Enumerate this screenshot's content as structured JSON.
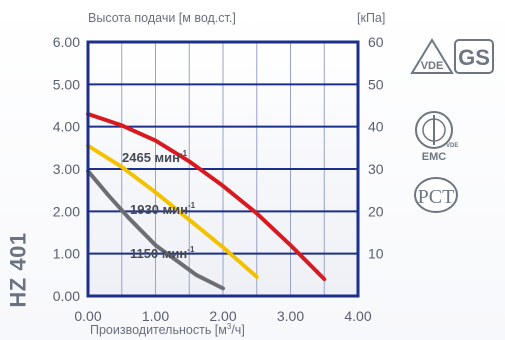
{
  "model": "HZ 401",
  "logos": {
    "vde": "VDE",
    "gs": "GS",
    "emc": "EMC",
    "emc_small": "VDE",
    "rst": "PCT"
  },
  "chart_data": {
    "type": "line",
    "title": "",
    "ylabel": "Высота подачи [м вод.ст.]",
    "ylabel_right": "[кПа]",
    "xlabel": "Производительность [м³/ч]",
    "xlim": [
      0,
      4
    ],
    "ylim": [
      0,
      6
    ],
    "ylim_right": [
      0,
      60
    ],
    "xticks": [
      "0.00",
      "1.00",
      "2.00",
      "3.00",
      "4.00"
    ],
    "yticks_left": [
      "0.00",
      "1.00",
      "2.00",
      "3.00",
      "4.00",
      "5.00",
      "6.00"
    ],
    "yticks_right": [
      "10",
      "20",
      "30",
      "40",
      "50",
      "60"
    ],
    "grid": true,
    "series": [
      {
        "name": "2465 мин-1",
        "color": "#d81920",
        "x": [
          0.0,
          0.5,
          1.0,
          1.5,
          2.0,
          2.5,
          3.0,
          3.5
        ],
        "y": [
          4.3,
          4.03,
          3.67,
          3.18,
          2.6,
          1.95,
          1.2,
          0.4
        ]
      },
      {
        "name": "1930 мин-1",
        "color": "#f2c200",
        "x": [
          0.0,
          0.5,
          1.0,
          1.5,
          2.0,
          2.5
        ],
        "y": [
          3.55,
          3.05,
          2.45,
          1.8,
          1.15,
          0.45
        ]
      },
      {
        "name": "1150 мин-1",
        "color": "#6c6e74",
        "x": [
          0.0,
          0.3,
          0.6,
          1.0,
          1.3,
          1.6,
          2.0
        ],
        "y": [
          2.95,
          2.38,
          1.85,
          1.2,
          0.85,
          0.5,
          0.18
        ]
      }
    ],
    "curve_labels": [
      {
        "text": "2465 мин",
        "sup": "-1"
      },
      {
        "text": "1930 мин",
        "sup": "-1"
      },
      {
        "text": "1150 мин",
        "sup": "-1"
      }
    ]
  }
}
